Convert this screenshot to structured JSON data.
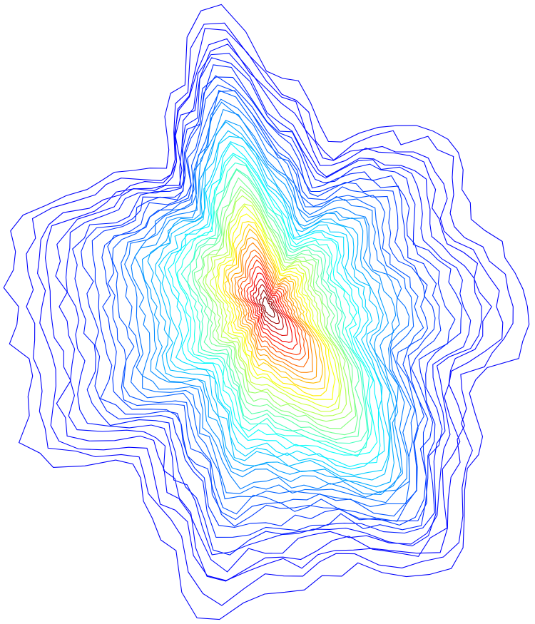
{
  "chart_data": {
    "type": "contour",
    "colormap": "jet"
  }
}
